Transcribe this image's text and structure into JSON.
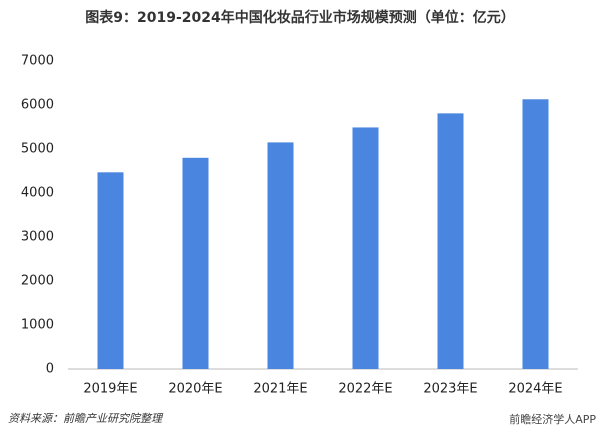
{
  "chart_data": {
    "type": "bar",
    "title": "图表9：2019-2024年中国化妆品行业市场规模预测（单位：亿元）",
    "categories": [
      "2019年E",
      "2020年E",
      "2021年E",
      "2022年E",
      "2023年E",
      "2024年E"
    ],
    "values": [
      4470,
      4800,
      5150,
      5490,
      5810,
      6130
    ],
    "color": "#4a86e0",
    "ylim": [
      0,
      7000
    ],
    "yticks": [
      0,
      1000,
      2000,
      3000,
      4000,
      5000,
      6000,
      7000
    ],
    "grid": false,
    "source": "资料来源：前瞻产业研究院整理",
    "watermark": "前瞻经济学人APP"
  }
}
